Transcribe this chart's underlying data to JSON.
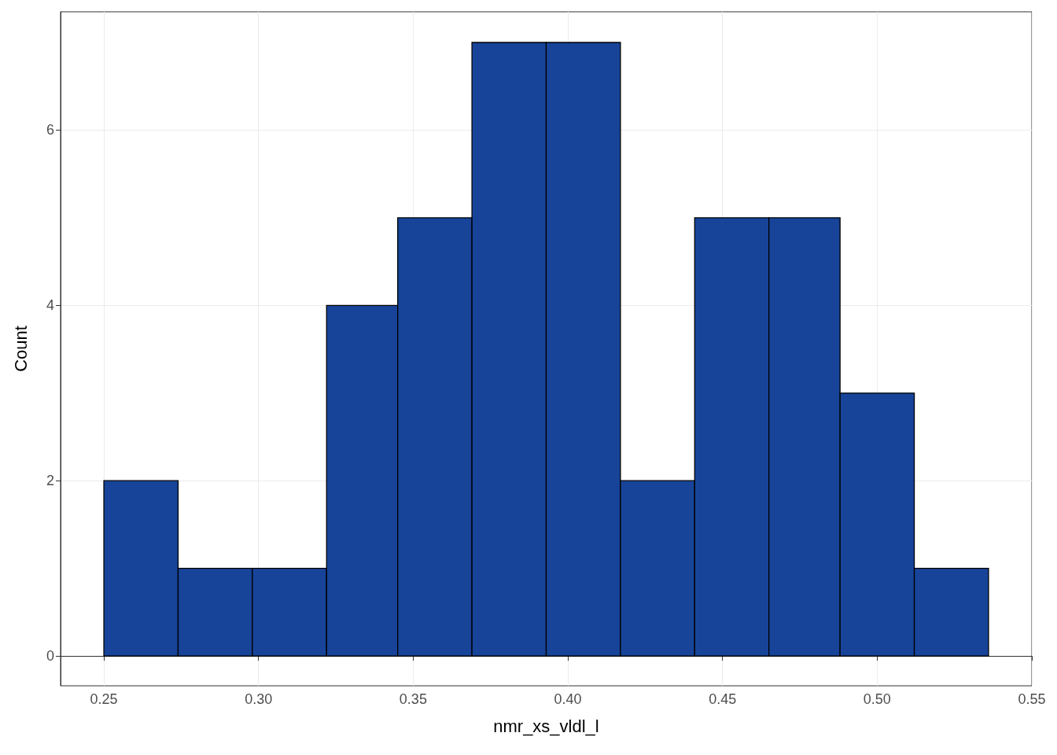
{
  "chart_data": {
    "type": "histogram",
    "xlabel": "nmr_xs_vldl_l",
    "ylabel": "Count",
    "bins": [
      0.25,
      0.274,
      0.298,
      0.322,
      0.345,
      0.369,
      0.393,
      0.417,
      0.441,
      0.465,
      0.488,
      0.512,
      0.536
    ],
    "values": [
      2,
      1,
      1,
      4,
      5,
      7,
      7,
      2,
      5,
      5,
      3,
      1
    ],
    "color": "#174499",
    "xlim": [
      0.236,
      0.55
    ],
    "xticks": [
      0.25,
      {
        "value": 0.3,
        "label": "0.30"
      },
      0.35,
      {
        "value": 0.4,
        "label": "0.40"
      },
      0.45,
      {
        "value": 0.5,
        "label": "0.50"
      },
      0.55
    ],
    "ylim": [
      -0.34,
      7.35
    ],
    "yticks": [
      0,
      2,
      4,
      6
    ],
    "grid": true
  }
}
